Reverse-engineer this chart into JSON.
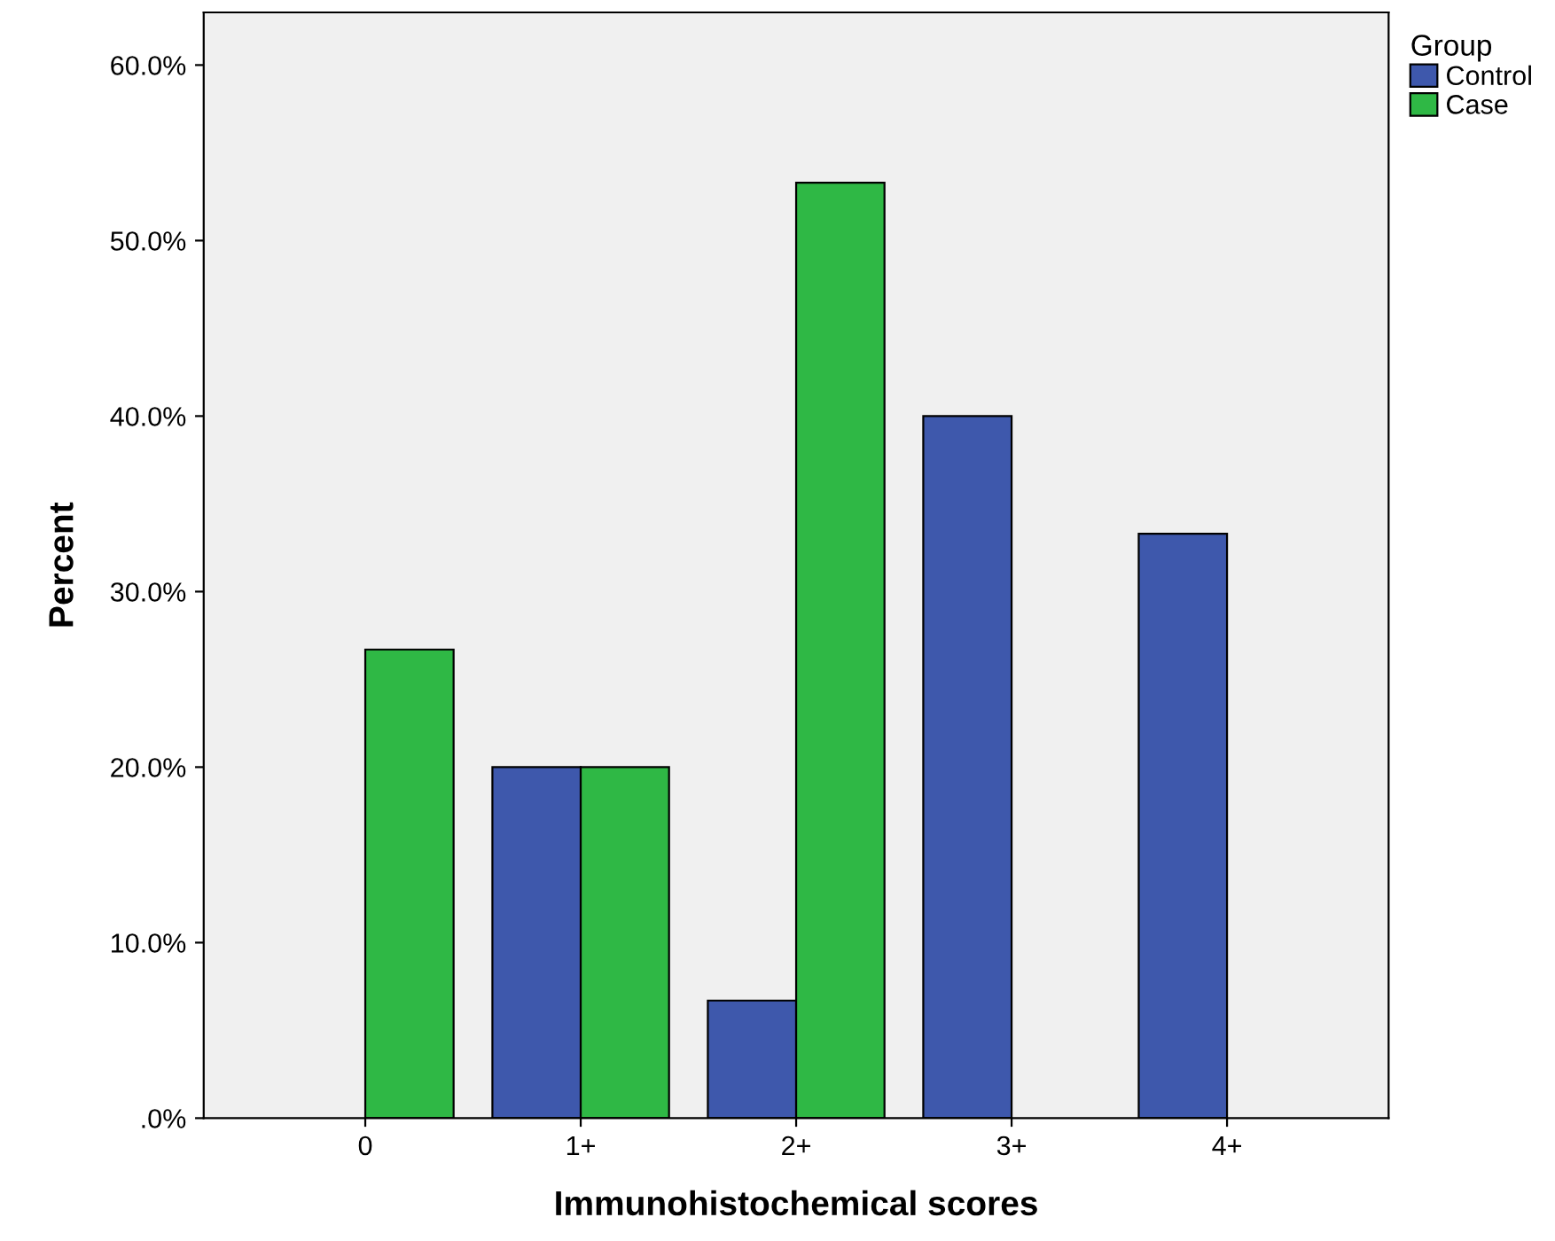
{
  "chart_data": {
    "type": "bar",
    "xlabel": "Immunohistochemical scores",
    "ylabel": "Percent",
    "legend_title": "Group",
    "categories": [
      "0",
      "1+",
      "2+",
      "3+",
      "4+"
    ],
    "series": [
      {
        "name": "Control",
        "color": "#3e58ac",
        "values": [
          null,
          20.0,
          6.7,
          40.0,
          33.3
        ]
      },
      {
        "name": "Case",
        "color": "#2fb845",
        "values": [
          26.7,
          20.0,
          53.3,
          null,
          null
        ]
      }
    ],
    "ylim": [
      0,
      63
    ],
    "yticks": [
      {
        "value": 0,
        "label": ".0%"
      },
      {
        "value": 10,
        "label": "10.0%"
      },
      {
        "value": 20,
        "label": "20.0%"
      },
      {
        "value": 30,
        "label": "30.0%"
      },
      {
        "value": 40,
        "label": "40.0%"
      },
      {
        "value": 50,
        "label": "50.0%"
      },
      {
        "value": 60,
        "label": "60.0%"
      }
    ],
    "grid": false,
    "legend": "top right"
  }
}
